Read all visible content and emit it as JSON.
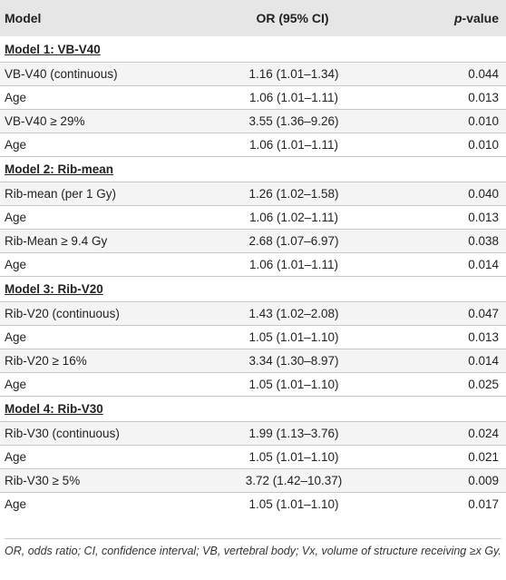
{
  "header": {
    "col1": "Model",
    "col2": "OR (95% CI)",
    "col3_italic": "p",
    "col3_rest": "-value"
  },
  "sections": [
    {
      "title": "Model 1: VB-V40",
      "rows": [
        {
          "label": "VB-V40 (continuous)",
          "or": "1.16 (1.01–1.34)",
          "p": "0.044"
        },
        {
          "label": "Age",
          "or": "1.06 (1.01–1.11)",
          "p": "0.013"
        },
        {
          "label": "VB-V40 ≥ 29%",
          "or": "3.55 (1.36–9.26)",
          "p": "0.010"
        },
        {
          "label": "Age",
          "or": "1.06 (1.01–1.11)",
          "p": "0.010"
        }
      ]
    },
    {
      "title": "Model 2: Rib-mean",
      "rows": [
        {
          "label": "Rib-mean (per 1 Gy)",
          "or": "1.26 (1.02–1.58)",
          "p": "0.040"
        },
        {
          "label": "Age",
          "or": "1.06 (1.02–1.11)",
          "p": "0.013"
        },
        {
          "label": "Rib-Mean ≥ 9.4 Gy",
          "or": "2.68 (1.07–6.97)",
          "p": "0.038"
        },
        {
          "label": "Age",
          "or": "1.06 (1.01–1.11)",
          "p": "0.014"
        }
      ]
    },
    {
      "title": "Model 3: Rib-V20",
      "rows": [
        {
          "label": "Rib-V20 (continuous)",
          "or": "1.43 (1.02–2.08)",
          "p": "0.047"
        },
        {
          "label": "Age",
          "or": "1.05 (1.01–1.10)",
          "p": "0.013"
        },
        {
          "label": "Rib-V20 ≥ 16%",
          "or": "3.34 (1.30–8.97)",
          "p": "0.014"
        },
        {
          "label": "Age",
          "or": "1.05 (1.01–1.10)",
          "p": "0.025"
        }
      ]
    },
    {
      "title": "Model 4: Rib-V30",
      "rows": [
        {
          "label": "Rib-V30 (continuous)",
          "or": "1.99 (1.13–3.76)",
          "p": "0.024"
        },
        {
          "label": "Age",
          "or": "1.05 (1.01–1.10)",
          "p": "0.021"
        },
        {
          "label": "Rib-V30 ≥ 5%",
          "or": "3.72 (1.42–10.37)",
          "p": "0.009"
        },
        {
          "label": "Age",
          "or": "1.05 (1.01–1.10)",
          "p": "0.017"
        }
      ]
    }
  ],
  "footnote": "OR, odds ratio; CI, confidence interval; VB, vertebral body; Vx, volume of structure receiving ≥x Gy."
}
